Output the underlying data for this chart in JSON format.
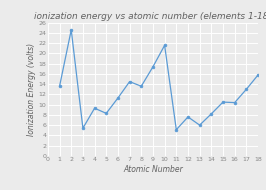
{
  "title": "ionization energy vs atomic number (elements 1-18)",
  "xlabel": "Atomic Number",
  "ylabel": "Ionization Energy (volts)",
  "atomic_numbers": [
    1,
    2,
    3,
    4,
    5,
    6,
    7,
    8,
    9,
    10,
    11,
    12,
    13,
    14,
    15,
    16,
    17,
    18
  ],
  "ionization_energies": [
    13.6,
    24.6,
    5.4,
    9.3,
    8.3,
    11.3,
    14.5,
    13.6,
    17.4,
    21.6,
    5.1,
    7.6,
    6.0,
    8.2,
    10.5,
    10.4,
    13.0,
    15.8
  ],
  "line_color": "#5b9bd5",
  "marker": "o",
  "marker_size": 2,
  "line_width": 0.9,
  "ylim": [
    0,
    26
  ],
  "xlim": [
    0,
    18
  ],
  "yticks": [
    0,
    2,
    4,
    6,
    8,
    10,
    12,
    14,
    16,
    18,
    20,
    22,
    24,
    26
  ],
  "xticks": [
    0,
    1,
    2,
    3,
    4,
    5,
    6,
    7,
    8,
    9,
    10,
    11,
    12,
    13,
    14,
    15,
    16,
    17,
    18
  ],
  "background_color": "#ebebeb",
  "plot_bg_color": "#ebebeb",
  "grid_color": "#ffffff",
  "title_fontsize": 6.5,
  "label_fontsize": 5.5,
  "tick_fontsize": 4.5,
  "title_color": "#606060",
  "label_color": "#606060",
  "tick_color": "#888888"
}
